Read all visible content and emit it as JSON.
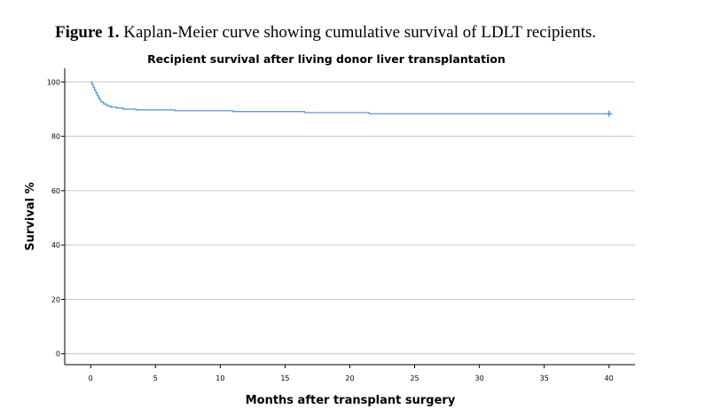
{
  "figure": {
    "label": "Figure 1.",
    "text": " Kaplan-Meier curve showing cumulative survival of LDLT recipients."
  },
  "chart_data": {
    "type": "line",
    "title": "Recipient survival after living donor liver transplantation",
    "xlabel": "Months after transplant surgery",
    "ylabel": "Survival %",
    "xlim": [
      -2,
      42
    ],
    "ylim": [
      -4,
      105
    ],
    "x_ticks": [
      0,
      5,
      10,
      15,
      20,
      25,
      30,
      35,
      40
    ],
    "y_ticks": [
      0,
      20,
      40,
      60,
      80,
      100
    ],
    "grid": "horizontal",
    "colors": {
      "line": "#4a90d9",
      "grid": "#c8c8c8",
      "axis": "#000000"
    },
    "series": [
      {
        "step": true,
        "x": [
          0,
          0.1,
          0.2,
          0.3,
          0.4,
          0.5,
          0.6,
          0.7,
          0.8,
          1.0,
          1.2,
          1.4,
          1.6,
          2.0,
          2.5,
          3.5,
          6.5,
          11.0,
          16.5,
          21.5,
          40
        ],
        "y": [
          100,
          99,
          98,
          97,
          96,
          95,
          94.2,
          93.4,
          92.6,
          91.9,
          91.4,
          91.0,
          90.7,
          90.4,
          90.0,
          89.7,
          89.4,
          89.1,
          88.7,
          88.3,
          88.3
        ]
      }
    ],
    "censor": [
      {
        "x": 40,
        "y": 88.3
      }
    ]
  }
}
